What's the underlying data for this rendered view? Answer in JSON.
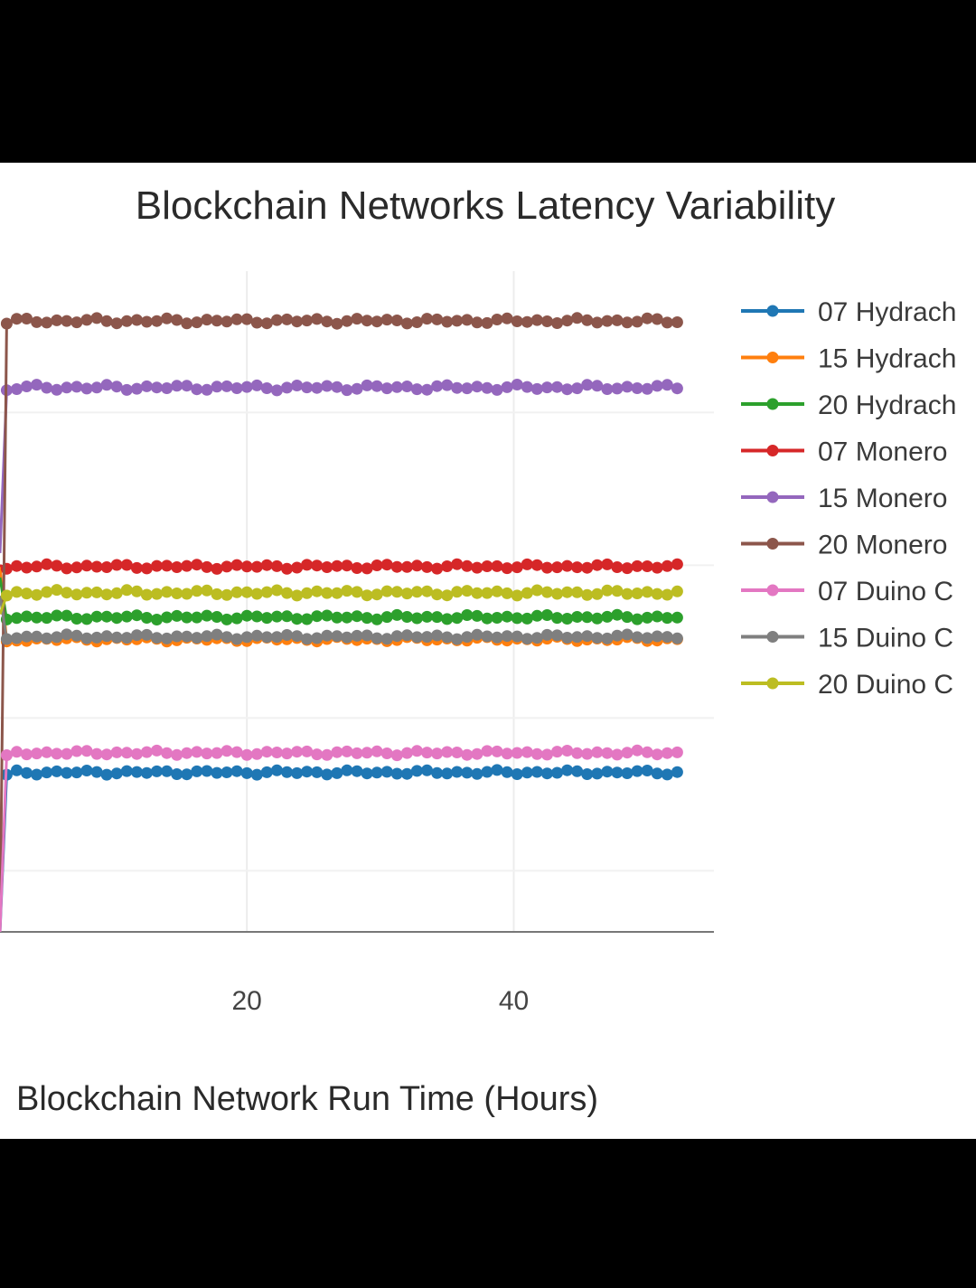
{
  "chart_data": {
    "type": "line",
    "title": "Blockchain Networks Latency Variability",
    "xlabel": "Blockchain Network Run Time (Hours)",
    "ylabel": "",
    "xlim": [
      1.5,
      55
    ],
    "ylim": [
      0,
      100
    ],
    "x_ticks": [
      20,
      40
    ],
    "grid": true,
    "legend_placement": "right",
    "series": [
      {
        "name": "07 Hydrach",
        "color": "#1f77b4",
        "start": 0,
        "level": 26.1,
        "jitter": 0.25
      },
      {
        "name": "15 Hydrach",
        "color": "#ff7f0e",
        "start": 60,
        "level": 47.9,
        "jitter": 0.25
      },
      {
        "name": "20 Hydrach",
        "color": "#2ca02c",
        "start": 58,
        "level": 51.5,
        "jitter": 0.25
      },
      {
        "name": "07 Monero",
        "color": "#d62728",
        "start": 60,
        "level": 59.8,
        "jitter": 0.25
      },
      {
        "name": "15 Monero",
        "color": "#9467bd",
        "start": 62,
        "level": 89.1,
        "jitter": 0.3
      },
      {
        "name": "20 Monero",
        "color": "#8c564b",
        "start": 0,
        "level": 100,
        "jitter": 0.3
      },
      {
        "name": "07 Duino C",
        "color": "#e377c2",
        "start": 0,
        "level": 29.3,
        "jitter": 0.25
      },
      {
        "name": "15 Duino C",
        "color": "#7f7f7f",
        "start": 55,
        "level": 48.3,
        "jitter": 0.25
      },
      {
        "name": "20 Duino C",
        "color": "#bcbd22",
        "start": 52,
        "level": 55.5,
        "jitter": 0.3
      }
    ]
  }
}
